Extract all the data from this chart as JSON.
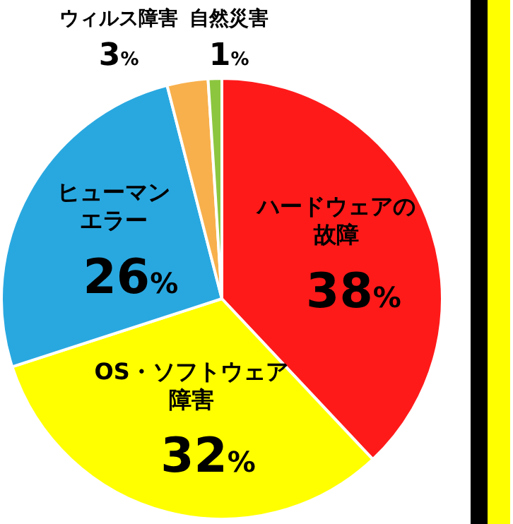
{
  "chart_data": {
    "type": "pie",
    "categories": [
      "ハードウェアの故障",
      "OS・ソフトウェア障害",
      "ヒューマンエラー",
      "ウィルス障害",
      "自然災害"
    ],
    "values": [
      38,
      32,
      26,
      3,
      1
    ],
    "colors": [
      "#ff1a1a",
      "#ffff00",
      "#29a8e0",
      "#f8b04c",
      "#8cc63f"
    ],
    "value_labels": [
      "38%",
      "32%",
      "26%",
      "3%",
      "1%"
    ],
    "legend": false
  }
}
